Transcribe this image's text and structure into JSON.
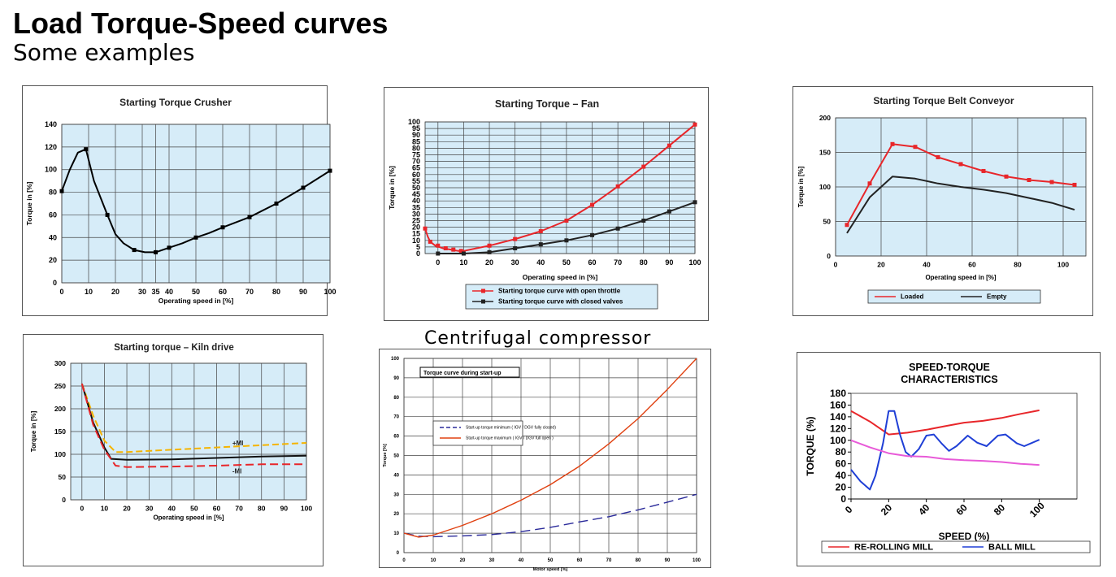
{
  "page": {
    "title": "Load Torque-Speed curves",
    "subtitle": "Some examples",
    "compressor_caption": "Centrifugal compressor"
  },
  "chart_data": [
    {
      "id": "crusher",
      "type": "line",
      "title": "Starting Torque Crusher",
      "xlabel": "Operating speed in [%]",
      "ylabel": "Torque in [%]",
      "xlim": [
        0,
        100
      ],
      "ylim": [
        0,
        140
      ],
      "xticks": [
        0,
        10,
        20,
        30,
        35,
        40,
        50,
        60,
        70,
        80,
        90,
        100
      ],
      "yticks": [
        0,
        20,
        40,
        60,
        80,
        100,
        120,
        140
      ],
      "grid": true,
      "series": [
        {
          "color": "#000000",
          "points": [
            [
              0,
              81
            ],
            [
              3,
              100
            ],
            [
              6,
              115
            ],
            [
              9,
              118
            ],
            [
              12,
              90
            ],
            [
              17,
              60
            ],
            [
              20,
              43
            ],
            [
              23,
              35
            ],
            [
              27,
              29
            ],
            [
              31,
              27
            ],
            [
              35,
              27
            ],
            [
              40,
              31
            ],
            [
              45,
              35
            ],
            [
              50,
              40
            ],
            [
              55,
              44
            ],
            [
              60,
              49
            ],
            [
              70,
              58
            ],
            [
              80,
              70
            ],
            [
              90,
              84
            ],
            [
              100,
              99
            ]
          ],
          "markers": [
            [
              0,
              81
            ],
            [
              9,
              118
            ],
            [
              17,
              60
            ],
            [
              27,
              29
            ],
            [
              35,
              27
            ],
            [
              40,
              31
            ],
            [
              50,
              40
            ],
            [
              60,
              49
            ],
            [
              70,
              58
            ],
            [
              80,
              70
            ],
            [
              90,
              84
            ],
            [
              100,
              99
            ]
          ]
        }
      ]
    },
    {
      "id": "fan",
      "type": "line",
      "title": "Starting Torque – Fan",
      "xlabel": "Operating speed in [%]",
      "ylabel": "Torque in [%]",
      "xlim": [
        -5,
        100
      ],
      "ylim": [
        0,
        100
      ],
      "xticks": [
        0,
        10,
        20,
        30,
        40,
        50,
        60,
        70,
        80,
        90,
        100
      ],
      "yticks": [
        0,
        5,
        10,
        15,
        20,
        25,
        30,
        35,
        40,
        45,
        50,
        55,
        60,
        65,
        70,
        75,
        80,
        85,
        90,
        95,
        100
      ],
      "grid": true,
      "legend": "bottom",
      "series": [
        {
          "name": "Starting torque curve with open throttle",
          "color": "#e8262a",
          "points": [
            [
              -5,
              19
            ],
            [
              -4,
              13
            ],
            [
              -3,
              9
            ],
            [
              -1,
              6
            ],
            [
              2,
              4
            ],
            [
              5,
              3
            ],
            [
              8,
              2
            ],
            [
              10,
              2
            ],
            [
              15,
              4
            ],
            [
              20,
              6
            ],
            [
              30,
              11
            ],
            [
              40,
              17
            ],
            [
              50,
              25
            ],
            [
              60,
              37
            ],
            [
              70,
              51
            ],
            [
              80,
              66
            ],
            [
              90,
              82
            ],
            [
              100,
              98
            ]
          ],
          "markers": [
            [
              -5,
              19
            ],
            [
              -3,
              9
            ],
            [
              0,
              6
            ],
            [
              3,
              4
            ],
            [
              6,
              3
            ],
            [
              9,
              2
            ],
            [
              20,
              6
            ],
            [
              30,
              11
            ],
            [
              40,
              17
            ],
            [
              50,
              25
            ],
            [
              60,
              37
            ],
            [
              70,
              51
            ],
            [
              80,
              66
            ],
            [
              90,
              82
            ],
            [
              100,
              98
            ]
          ]
        },
        {
          "name": "Starting torque curve with closed valves",
          "color": "#222222",
          "points": [
            [
              0,
              0
            ],
            [
              10,
              0
            ],
            [
              20,
              1
            ],
            [
              30,
              4
            ],
            [
              40,
              7
            ],
            [
              50,
              10
            ],
            [
              60,
              14
            ],
            [
              70,
              19
            ],
            [
              80,
              25
            ],
            [
              90,
              32
            ],
            [
              100,
              39
            ]
          ],
          "markers": [
            [
              0,
              0
            ],
            [
              10,
              0
            ],
            [
              20,
              1
            ],
            [
              30,
              4
            ],
            [
              40,
              7
            ],
            [
              50,
              10
            ],
            [
              60,
              14
            ],
            [
              70,
              19
            ],
            [
              80,
              25
            ],
            [
              90,
              32
            ],
            [
              100,
              39
            ]
          ]
        }
      ]
    },
    {
      "id": "belt",
      "type": "line",
      "title": "Starting Torque Belt Conveyor",
      "xlabel": "Operating speed in [%]",
      "ylabel": "Torque in [%]",
      "xlim": [
        0,
        110
      ],
      "ylim": [
        0,
        200
      ],
      "xticks": [
        0,
        20,
        40,
        60,
        80,
        100
      ],
      "yticks": [
        0,
        50,
        100,
        150,
        200
      ],
      "grid": true,
      "legend": "bottom",
      "series": [
        {
          "name": "Loaded",
          "color": "#e8262a",
          "points": [
            [
              5,
              45
            ],
            [
              15,
              105
            ],
            [
              25,
              162
            ],
            [
              35,
              158
            ],
            [
              45,
              143
            ],
            [
              55,
              133
            ],
            [
              65,
              123
            ],
            [
              75,
              115
            ],
            [
              85,
              110
            ],
            [
              95,
              107
            ],
            [
              105,
              103
            ]
          ],
          "markers": [
            [
              5,
              45
            ],
            [
              15,
              105
            ],
            [
              25,
              162
            ],
            [
              35,
              158
            ],
            [
              45,
              143
            ],
            [
              55,
              133
            ],
            [
              65,
              123
            ],
            [
              75,
              115
            ],
            [
              85,
              110
            ],
            [
              95,
              107
            ],
            [
              105,
              103
            ]
          ]
        },
        {
          "name": "Empty",
          "color": "#222222",
          "points": [
            [
              5,
              33
            ],
            [
              15,
              85
            ],
            [
              25,
              115
            ],
            [
              35,
              112
            ],
            [
              45,
              105
            ],
            [
              55,
              100
            ],
            [
              65,
              96
            ],
            [
              75,
              91
            ],
            [
              85,
              84
            ],
            [
              95,
              77
            ],
            [
              105,
              67
            ]
          ],
          "markers": []
        }
      ]
    },
    {
      "id": "kiln",
      "type": "line",
      "title": "Starting torque – Kiln drive",
      "xlabel": "Operating speed in [%]",
      "ylabel": "Torque in [%]",
      "xlim": [
        -5,
        100
      ],
      "ylim": [
        0,
        300
      ],
      "xticks": [
        0,
        10,
        20,
        30,
        40,
        50,
        60,
        70,
        80,
        90,
        100
      ],
      "yticks": [
        0,
        50,
        100,
        150,
        200,
        250,
        300
      ],
      "grid": true,
      "annotations": [
        {
          "text": "+MI",
          "x": 67,
          "y": 120
        },
        {
          "text": "-MI",
          "x": 67,
          "y": 58
        }
      ],
      "series": [
        {
          "color": "#f5b400",
          "dash": "8,4",
          "points": [
            [
              0,
              255
            ],
            [
              5,
              185
            ],
            [
              10,
              130
            ],
            [
              15,
              105
            ],
            [
              20,
              105
            ],
            [
              40,
              110
            ],
            [
              60,
              115
            ],
            [
              80,
              120
            ],
            [
              100,
              125
            ]
          ]
        },
        {
          "color": "#111111",
          "points": [
            [
              0,
              255
            ],
            [
              5,
              170
            ],
            [
              10,
              115
            ],
            [
              13,
              90
            ],
            [
              20,
              88
            ],
            [
              40,
              89
            ],
            [
              60,
              92
            ],
            [
              80,
              95
            ],
            [
              100,
              97
            ]
          ]
        },
        {
          "color": "#e8262a",
          "dash": "10,5",
          "points": [
            [
              0,
              255
            ],
            [
              5,
              165
            ],
            [
              10,
              110
            ],
            [
              15,
              75
            ],
            [
              20,
              72
            ],
            [
              40,
              73
            ],
            [
              60,
              75
            ],
            [
              80,
              78
            ],
            [
              100,
              78
            ]
          ]
        }
      ]
    },
    {
      "id": "compressor",
      "type": "line",
      "title": "Torque curve during start-up",
      "xlabel": "Motor speed [%]",
      "ylabel": "Torque [%]",
      "xlim": [
        0,
        100
      ],
      "ylim": [
        0,
        100
      ],
      "xticks": [
        0,
        10,
        20,
        30,
        40,
        50,
        60,
        70,
        80,
        90,
        100
      ],
      "yticks": [
        0,
        10,
        20,
        30,
        40,
        50,
        60,
        70,
        80,
        90,
        100
      ],
      "grid": true,
      "legend": "left",
      "series": [
        {
          "name": "Start-up torque minimum ( IGV / DGV fully closed)",
          "color": "#2a2a9a",
          "dash": "12,6",
          "points": [
            [
              0,
              10
            ],
            [
              5,
              8.5
            ],
            [
              10,
              8.2
            ],
            [
              20,
              8.6
            ],
            [
              30,
              9.3
            ],
            [
              40,
              10.8
            ],
            [
              50,
              13
            ],
            [
              60,
              15.8
            ],
            [
              70,
              18.5
            ],
            [
              80,
              22
            ],
            [
              90,
              26
            ],
            [
              100,
              30
            ]
          ]
        },
        {
          "name": "Start-up torque maximum ( IGV / DGV full open )",
          "color": "#e04010",
          "points": [
            [
              0,
              10
            ],
            [
              5,
              8
            ],
            [
              10,
              9
            ],
            [
              20,
              14
            ],
            [
              30,
              20
            ],
            [
              40,
              27
            ],
            [
              50,
              35
            ],
            [
              60,
              44.5
            ],
            [
              70,
              56
            ],
            [
              80,
              69
            ],
            [
              90,
              84
            ],
            [
              100,
              100
            ]
          ]
        }
      ]
    },
    {
      "id": "mill",
      "type": "line",
      "title": "SPEED-TORQUE CHARACTERISTICS",
      "xlabel": "SPEED (%)",
      "ylabel": "TORQUE (%)",
      "xlim": [
        0,
        120
      ],
      "ylim": [
        0,
        180
      ],
      "xticks": [
        0,
        20,
        40,
        60,
        80,
        100
      ],
      "yticks": [
        0,
        20,
        40,
        60,
        80,
        100,
        120,
        140,
        160,
        180
      ],
      "grid": false,
      "legend": "bottom",
      "series": [
        {
          "name": "RE-ROLLING MILL",
          "color": "#e8262a",
          "points": [
            [
              0,
              150
            ],
            [
              10,
              132
            ],
            [
              20,
              110
            ],
            [
              30,
              113
            ],
            [
              40,
              118
            ],
            [
              50,
              124
            ],
            [
              60,
              130
            ],
            [
              70,
              133
            ],
            [
              80,
              138
            ],
            [
              90,
              145
            ],
            [
              100,
              151
            ]
          ]
        },
        {
          "name": "BALL MILL",
          "color": "#1f3fd6",
          "points": [
            [
              0,
              50
            ],
            [
              5,
              30
            ],
            [
              10,
              16
            ],
            [
              13,
              40
            ],
            [
              17,
              95
            ],
            [
              20,
              150
            ],
            [
              23,
              150
            ],
            [
              26,
              110
            ],
            [
              29,
              80
            ],
            [
              32,
              72
            ],
            [
              36,
              85
            ],
            [
              40,
              108
            ],
            [
              44,
              110
            ],
            [
              48,
              95
            ],
            [
              52,
              82
            ],
            [
              56,
              90
            ],
            [
              62,
              108
            ],
            [
              67,
              96
            ],
            [
              72,
              90
            ],
            [
              78,
              108
            ],
            [
              82,
              110
            ],
            [
              88,
              95
            ],
            [
              92,
              90
            ],
            [
              100,
              101
            ]
          ]
        },
        {
          "name": "",
          "color": "#e85ad8",
          "points": [
            [
              0,
              100
            ],
            [
              10,
              88
            ],
            [
              20,
              78
            ],
            [
              30,
              73
            ],
            [
              40,
              72
            ],
            [
              50,
              68
            ],
            [
              60,
              66
            ],
            [
              70,
              65
            ],
            [
              80,
              63
            ],
            [
              90,
              60
            ],
            [
              100,
              58
            ]
          ]
        }
      ]
    }
  ]
}
